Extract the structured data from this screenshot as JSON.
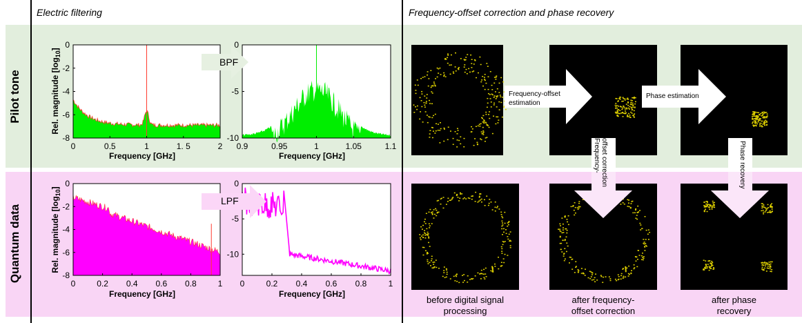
{
  "headers": {
    "electric": "Electric filtering",
    "frequency": "Frequency-offset correction and phase recovery"
  },
  "rows": {
    "pilot": "Pilot tone",
    "quantum": "Quantum data"
  },
  "ylabel": "Rel. magnitude [log",
  "ylabel_sub": "10",
  "ylabel_end": "]",
  "xlabel": "Frequency [GHz]",
  "filters": {
    "bpf": "BPF",
    "lpf": "LPF"
  },
  "arrows": {
    "freq_offset_est_1": "Frequency-offset",
    "freq_offset_est_2": "estimation",
    "phase_est": "Phase estimation",
    "freq_offset_corr_1": "Frequency-",
    "freq_offset_corr_2": "offset correction",
    "phase_recovery": "Phase recovery"
  },
  "captions": {
    "c1_l1": "before digital signal",
    "c1_l2": "processing",
    "c2_l1": "after frequency-",
    "c2_l2": "offset correction",
    "c3_l1": "after phase",
    "c3_l2": "recovery"
  },
  "colors": {
    "pilot_band": "#e2eedd",
    "quantum_band": "#f9d5f5",
    "green": "#00ee00",
    "magenta": "#ff00ff",
    "red": "#ff3b2f",
    "yellow": "#e0d200"
  },
  "chart_data": [
    {
      "type": "area",
      "xlim": [
        0,
        2
      ],
      "ylim": [
        -8,
        0
      ],
      "xticks": [
        "0",
        "0.5",
        "1",
        "1. 5",
        "2"
      ],
      "yticks": [
        "0",
        "-2",
        "-4",
        "-6",
        "-8"
      ],
      "xlabel": "Frequency [GHz]"
    },
    {
      "type": "area",
      "xlim": [
        0.9,
        1.1
      ],
      "ylim": [
        -10,
        0
      ],
      "xticks": [
        "0.9",
        "0.95",
        "1",
        "1.05",
        "1.1"
      ],
      "yticks": [
        "0",
        "-5",
        "-10"
      ],
      "xlabel": "Frequency [GHz]"
    },
    {
      "type": "area",
      "xlim": [
        0,
        1
      ],
      "ylim": [
        -8,
        0
      ],
      "xticks": [
        "0",
        "0.2",
        "0.4",
        "0.6",
        "0.8",
        "1"
      ],
      "yticks": [
        "0",
        "-2",
        "-4",
        "-6",
        "-8"
      ],
      "xlabel": "Frequency [GHz]"
    },
    {
      "type": "area",
      "xlim": [
        0,
        1
      ],
      "ylim": [
        -13,
        0
      ],
      "xticks": [
        "0",
        "0.2",
        "0.4",
        "0.6",
        "0.8",
        "1"
      ],
      "yticks": [
        "0",
        "-5",
        "-10"
      ],
      "xlabel": "Frequency [GHz]"
    }
  ]
}
